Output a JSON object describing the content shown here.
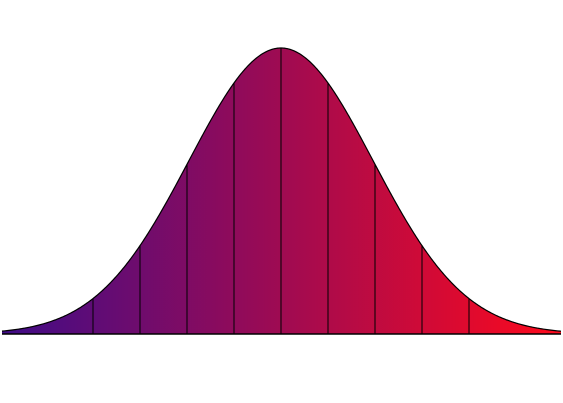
{
  "curve": {
    "type": "normal-distribution",
    "band_count": 10,
    "gradient_start_color": "#3f0c88",
    "gradient_end_color": "#ff0a1c",
    "outline_color": "#000000",
    "background_color": "#ffffff"
  }
}
